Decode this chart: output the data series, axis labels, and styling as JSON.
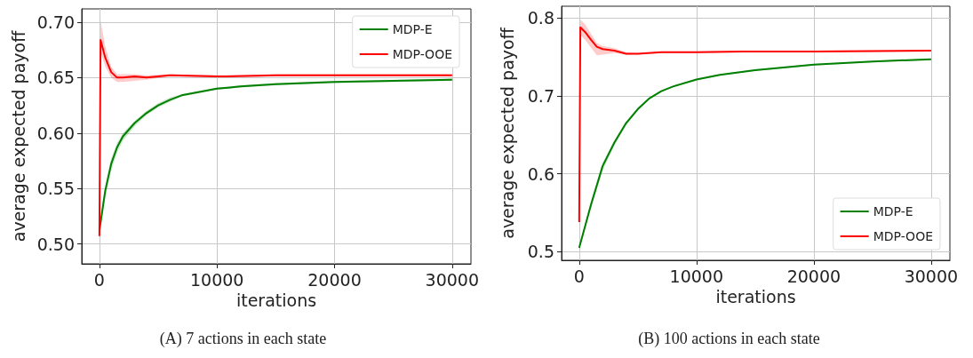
{
  "chart_data": [
    {
      "type": "line",
      "title": "(A) 7 actions in each state",
      "xlabel": "iterations",
      "ylabel": "average expected payoff",
      "grid": true,
      "legend": "top right",
      "xlim": [
        -1500,
        31600
      ],
      "xticks": [
        0,
        10000,
        20000,
        30000
      ],
      "ylim": [
        0.482,
        0.712
      ],
      "yticks": [
        {
          "value": 0.5,
          "label": "0.50"
        },
        {
          "value": 0.55,
          "label": "0.55"
        },
        {
          "value": 0.6,
          "label": "0.60"
        },
        {
          "value": 0.65,
          "label": "0.65"
        },
        {
          "value": 0.7,
          "label": "0.70"
        }
      ],
      "series": [
        {
          "name": "MDP-E",
          "color": "#008000",
          "x": [
            0,
            250,
            500,
            1000,
            1500,
            2000,
            3000,
            4000,
            5000,
            6000,
            7000,
            8000,
            10000,
            12000,
            15000,
            20000,
            25000,
            30000
          ],
          "values": [
            0.512,
            0.53,
            0.548,
            0.572,
            0.587,
            0.597,
            0.609,
            0.618,
            0.625,
            0.63,
            0.634,
            0.636,
            0.64,
            0.642,
            0.644,
            0.646,
            0.647,
            0.648
          ],
          "lower": [
            0.505,
            0.524,
            0.542,
            0.566,
            0.582,
            0.593,
            0.606,
            0.616,
            0.623,
            0.628,
            0.633,
            0.635,
            0.639,
            0.641,
            0.643,
            0.645,
            0.646,
            0.647
          ],
          "upper": [
            0.519,
            0.536,
            0.553,
            0.577,
            0.591,
            0.6,
            0.611,
            0.62,
            0.627,
            0.632,
            0.635,
            0.637,
            0.641,
            0.643,
            0.645,
            0.647,
            0.648,
            0.649
          ]
        },
        {
          "name": "MDP-OOE",
          "color": "#ff0000",
          "x": [
            0,
            100,
            200,
            500,
            1000,
            1500,
            2000,
            3000,
            4000,
            6000,
            10000,
            15000,
            20000,
            30000
          ],
          "values": [
            0.507,
            0.684,
            0.68,
            0.668,
            0.655,
            0.65,
            0.65,
            0.651,
            0.65,
            0.652,
            0.651,
            0.652,
            0.652,
            0.652
          ],
          "lower": [
            0.49,
            0.672,
            0.67,
            0.66,
            0.65,
            0.646,
            0.646,
            0.647,
            0.648,
            0.651,
            0.65,
            0.651,
            0.651,
            0.651
          ],
          "upper": [
            0.52,
            0.702,
            0.696,
            0.678,
            0.66,
            0.653,
            0.653,
            0.653,
            0.652,
            0.653,
            0.652,
            0.653,
            0.653,
            0.653
          ]
        }
      ]
    },
    {
      "type": "line",
      "title": "(B) 100 actions in each state",
      "xlabel": "iterations",
      "ylabel": "average expected payoff",
      "grid": true,
      "legend": "bottom right",
      "xlim": [
        -1500,
        31600
      ],
      "xticks": [
        0,
        10000,
        20000,
        30000
      ],
      "ylim": [
        0.489,
        0.815
      ],
      "yticks": [
        0.5,
        0.6,
        0.7,
        0.8
      ],
      "series": [
        {
          "name": "MDP-E",
          "color": "#008000",
          "x": [
            0,
            1000,
            2000,
            3000,
            4000,
            5000,
            6000,
            7000,
            8000,
            10000,
            12000,
            15000,
            20000,
            25000,
            30000
          ],
          "values": [
            0.505,
            0.56,
            0.61,
            0.64,
            0.665,
            0.683,
            0.697,
            0.706,
            0.712,
            0.721,
            0.727,
            0.733,
            0.74,
            0.744,
            0.747
          ],
          "lower": [
            0.503,
            0.555,
            0.604,
            0.636,
            0.662,
            0.681,
            0.696,
            0.705,
            0.711,
            0.72,
            0.726,
            0.732,
            0.739,
            0.743,
            0.746
          ],
          "upper": [
            0.507,
            0.565,
            0.614,
            0.643,
            0.667,
            0.685,
            0.698,
            0.707,
            0.713,
            0.722,
            0.728,
            0.734,
            0.741,
            0.745,
            0.748
          ]
        },
        {
          "name": "MDP-OOE",
          "color": "#ff0000",
          "x": [
            0,
            100,
            500,
            1000,
            1500,
            2000,
            3000,
            4000,
            5000,
            7000,
            10000,
            14000,
            20000,
            30000
          ],
          "values": [
            0.538,
            0.788,
            0.782,
            0.772,
            0.763,
            0.76,
            0.758,
            0.754,
            0.754,
            0.756,
            0.756,
            0.757,
            0.757,
            0.758
          ],
          "lower": [
            0.53,
            0.778,
            0.772,
            0.762,
            0.752,
            0.753,
            0.755,
            0.753,
            0.753,
            0.755,
            0.755,
            0.756,
            0.756,
            0.757
          ],
          "upper": [
            0.546,
            0.798,
            0.792,
            0.78,
            0.768,
            0.764,
            0.761,
            0.756,
            0.755,
            0.757,
            0.757,
            0.758,
            0.758,
            0.759
          ]
        }
      ]
    }
  ]
}
